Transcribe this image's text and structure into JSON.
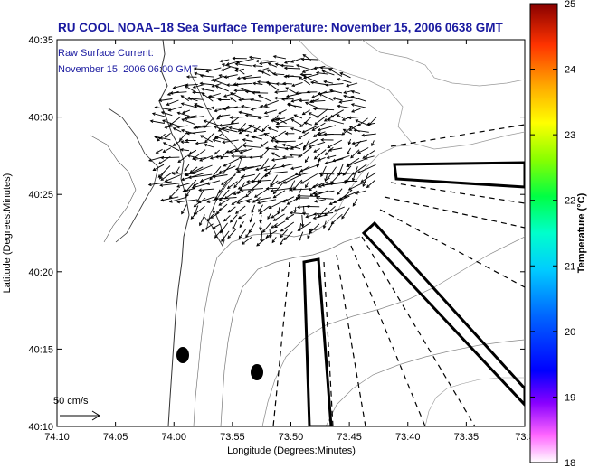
{
  "chart_data": {
    "type": "scatter",
    "title": "RU COOL  NOAA–18  Sea Surface Temperature:  November 15, 2006 0638 GMT",
    "annotation_lines": [
      "Raw Surface Current:",
      "November 15, 2006 06:00 GMT"
    ],
    "xlabel": "Longitude (Degrees:Minutes)",
    "ylabel": "Latitude (Degrees:Minutes)",
    "x_ticks": [
      "74:10",
      "74:05",
      "74:00",
      "73:55",
      "73:50",
      "73:45",
      "73:40",
      "73:35",
      "73:3"
    ],
    "y_ticks": [
      "40:35",
      "40:30",
      "40:25",
      "40:20",
      "40:15",
      "40:10"
    ],
    "xlim": [
      "74:10",
      "73:30"
    ],
    "ylim": [
      "40:10",
      "40:35"
    ],
    "scale_label": "50 cm/s",
    "colorbar": {
      "label": "Temperature (°C)",
      "ticks": [
        "18",
        "19",
        "20",
        "21",
        "22",
        "23",
        "24",
        "25"
      ],
      "range": [
        18,
        25
      ]
    },
    "grid": false
  }
}
